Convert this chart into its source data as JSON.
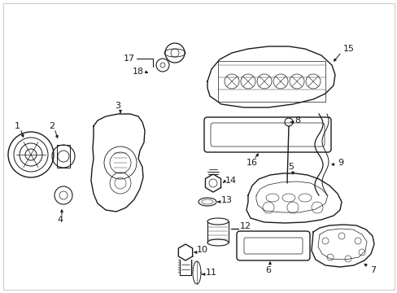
{
  "bg_color": "#ffffff",
  "line_color": "#1a1a1a",
  "label_color": "#1a1a1a",
  "figsize": [
    4.89,
    3.6
  ],
  "dpi": 100,
  "border_color": "#cccccc"
}
